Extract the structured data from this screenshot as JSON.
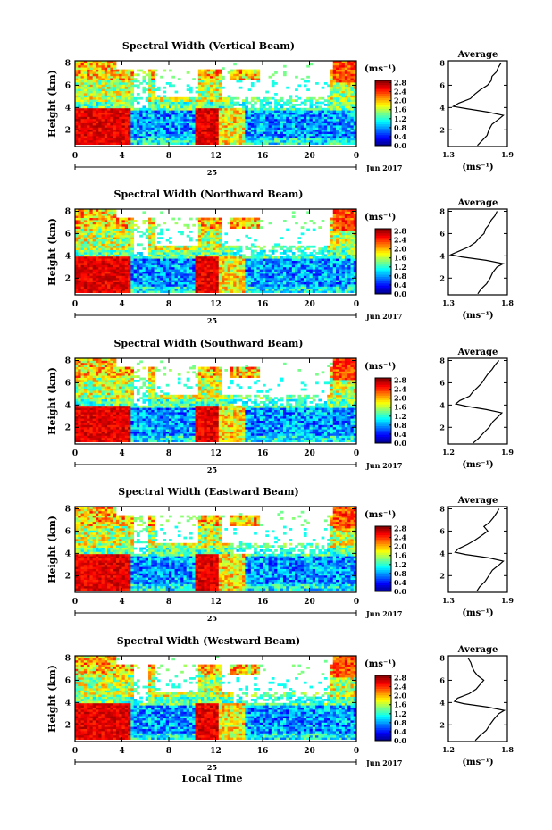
{
  "chart_data": [
    {
      "type": "heatmap",
      "title": "Spectral Width (Vertical Beam)",
      "xlabel": "",
      "ylabel": "Height (km)",
      "x_ticks": [
        "0",
        "4",
        "8",
        "12",
        "16",
        "20",
        "0"
      ],
      "date_day": "25",
      "date_label": "Jun 2017",
      "y_ticks": [
        "2",
        "4",
        "6",
        "8"
      ],
      "ylim": [
        0.5,
        8.2
      ],
      "xlim": [
        0,
        24
      ],
      "colorbar": {
        "unit": "(ms⁻¹)",
        "ticks": [
          "0.0",
          "0.4",
          "0.8",
          "1.2",
          "1.6",
          "2.0",
          "2.4",
          "2.8"
        ],
        "range": [
          0,
          2.9
        ]
      },
      "profile": {
        "title": "Average",
        "unit": "(ms⁻¹)",
        "x_ticks": [
          "1.3",
          "1.9"
        ],
        "xlim": [
          1.3,
          1.9
        ],
        "y_ticks": [
          "2",
          "4",
          "6",
          "8"
        ],
        "heights": [
          0.6,
          1.0,
          1.5,
          2.0,
          2.5,
          3.0,
          3.3,
          3.6,
          3.9,
          4.1,
          4.4,
          4.8,
          5.2,
          5.6,
          6.0,
          6.4,
          6.8,
          7.2,
          7.6,
          8.0
        ],
        "values": [
          1.6,
          1.63,
          1.7,
          1.72,
          1.75,
          1.82,
          1.86,
          1.7,
          1.48,
          1.35,
          1.4,
          1.52,
          1.57,
          1.62,
          1.7,
          1.73,
          1.75,
          1.78,
          1.8,
          1.84
        ]
      }
    },
    {
      "type": "heatmap",
      "title": "Spectral Width (Northward Beam)",
      "xlabel": "",
      "ylabel": "Height (km)",
      "x_ticks": [
        "0",
        "4",
        "8",
        "12",
        "16",
        "20",
        "0"
      ],
      "date_day": "25",
      "date_label": "Jun 2017",
      "y_ticks": [
        "2",
        "4",
        "6",
        "8"
      ],
      "ylim": [
        0.5,
        8.2
      ],
      "xlim": [
        0,
        24
      ],
      "colorbar": {
        "unit": "(ms⁻¹)",
        "ticks": [
          "0.0",
          "0.4",
          "0.8",
          "1.2",
          "1.6",
          "2.0",
          "2.4",
          "2.8"
        ],
        "range": [
          0,
          2.9
        ]
      },
      "profile": {
        "title": "Average",
        "unit": "(ms⁻¹)",
        "x_ticks": [
          "1.3",
          "1.8"
        ],
        "xlim": [
          1.3,
          1.8
        ],
        "y_ticks": [
          "2",
          "4",
          "6",
          "8"
        ],
        "heights": [
          0.6,
          1.0,
          1.5,
          2.0,
          2.5,
          3.0,
          3.3,
          3.6,
          3.9,
          4.1,
          4.4,
          4.8,
          5.2,
          5.6,
          6.0,
          6.4,
          6.8,
          7.2,
          7.6,
          8.0
        ],
        "values": [
          1.55,
          1.58,
          1.62,
          1.65,
          1.68,
          1.72,
          1.76,
          1.62,
          1.42,
          1.32,
          1.38,
          1.48,
          1.53,
          1.56,
          1.6,
          1.62,
          1.65,
          1.67,
          1.7,
          1.72
        ]
      }
    },
    {
      "type": "heatmap",
      "title": "Spectral Width (Southward Beam)",
      "xlabel": "",
      "ylabel": "Height (km)",
      "x_ticks": [
        "0",
        "4",
        "8",
        "12",
        "16",
        "20",
        "0"
      ],
      "date_day": "25",
      "date_label": "Jun 2017",
      "y_ticks": [
        "2",
        "4",
        "6",
        "8"
      ],
      "ylim": [
        0.5,
        8.2
      ],
      "xlim": [
        0,
        24
      ],
      "colorbar": {
        "unit": "(ms⁻¹)",
        "ticks": [
          "0.0",
          "0.4",
          "0.8",
          "1.2",
          "1.6",
          "2.0",
          "2.4",
          "2.8"
        ],
        "range": [
          0,
          2.9
        ]
      },
      "profile": {
        "title": "Average",
        "unit": "(ms⁻¹)",
        "x_ticks": [
          "1.2",
          "1.9"
        ],
        "xlim": [
          1.2,
          1.9
        ],
        "y_ticks": [
          "2",
          "4",
          "6",
          "8"
        ],
        "heights": [
          0.6,
          1.0,
          1.5,
          2.0,
          2.5,
          3.0,
          3.3,
          3.6,
          3.9,
          4.1,
          4.4,
          4.8,
          5.2,
          5.6,
          6.0,
          6.4,
          6.8,
          7.2,
          7.6,
          8.0
        ],
        "values": [
          1.5,
          1.55,
          1.62,
          1.68,
          1.72,
          1.8,
          1.84,
          1.66,
          1.4,
          1.28,
          1.34,
          1.45,
          1.5,
          1.55,
          1.6,
          1.64,
          1.68,
          1.72,
          1.76,
          1.8
        ]
      }
    },
    {
      "type": "heatmap",
      "title": "Spectral Width (Eastward Beam)",
      "xlabel": "",
      "ylabel": "Height (km)",
      "x_ticks": [
        "0",
        "4",
        "8",
        "12",
        "16",
        "20",
        "0"
      ],
      "date_day": "25",
      "date_label": "Jun 2017",
      "y_ticks": [
        "2",
        "4",
        "6",
        "8"
      ],
      "ylim": [
        0.5,
        8.2
      ],
      "xlim": [
        0,
        24
      ],
      "colorbar": {
        "unit": "(ms⁻¹)",
        "ticks": [
          "0.0",
          "0.4",
          "0.8",
          "1.2",
          "1.6",
          "2.0",
          "2.4",
          "2.8"
        ],
        "range": [
          0,
          2.9
        ]
      },
      "profile": {
        "title": "Average",
        "unit": "(ms⁻¹)",
        "x_ticks": [
          "1.3",
          "1.9"
        ],
        "xlim": [
          1.3,
          1.9
        ],
        "y_ticks": [
          "2",
          "4",
          "6",
          "8"
        ],
        "heights": [
          0.6,
          1.0,
          1.5,
          2.0,
          2.5,
          3.0,
          3.3,
          3.6,
          3.9,
          4.1,
          4.4,
          4.8,
          5.2,
          5.6,
          6.0,
          6.4,
          6.8,
          7.2,
          7.6,
          8.0
        ],
        "values": [
          1.58,
          1.62,
          1.68,
          1.72,
          1.75,
          1.82,
          1.86,
          1.72,
          1.48,
          1.36,
          1.4,
          1.5,
          1.58,
          1.64,
          1.7,
          1.66,
          1.72,
          1.76,
          1.78,
          1.82
        ]
      }
    },
    {
      "type": "heatmap",
      "title": "Spectral Width (Westward Beam)",
      "xlabel": "Local Time",
      "ylabel": "Height (km)",
      "x_ticks": [
        "0",
        "4",
        "8",
        "12",
        "16",
        "20",
        "0"
      ],
      "date_day": "25",
      "date_label": "Jun 2017",
      "y_ticks": [
        "2",
        "4",
        "6",
        "8"
      ],
      "ylim": [
        0.5,
        8.2
      ],
      "xlim": [
        0,
        24
      ],
      "colorbar": {
        "unit": "(ms⁻¹)",
        "ticks": [
          "0.0",
          "0.4",
          "0.8",
          "1.2",
          "1.6",
          "2.0",
          "2.4",
          "2.8"
        ],
        "range": [
          0,
          2.9
        ]
      },
      "profile": {
        "title": "Average",
        "unit": "(ms⁻¹)",
        "x_ticks": [
          "1.2",
          "1.8"
        ],
        "xlim": [
          1.2,
          1.8
        ],
        "y_ticks": [
          "2",
          "4",
          "6",
          "8"
        ],
        "heights": [
          0.6,
          1.0,
          1.5,
          2.0,
          2.5,
          3.0,
          3.3,
          3.6,
          3.9,
          4.1,
          4.4,
          4.8,
          5.2,
          5.6,
          6.0,
          6.4,
          6.8,
          7.2,
          7.6,
          8.0
        ],
        "values": [
          1.48,
          1.52,
          1.58,
          1.62,
          1.66,
          1.72,
          1.76,
          1.6,
          1.36,
          1.26,
          1.3,
          1.42,
          1.48,
          1.52,
          1.56,
          1.5,
          1.46,
          1.44,
          1.42,
          1.4
        ]
      }
    }
  ]
}
